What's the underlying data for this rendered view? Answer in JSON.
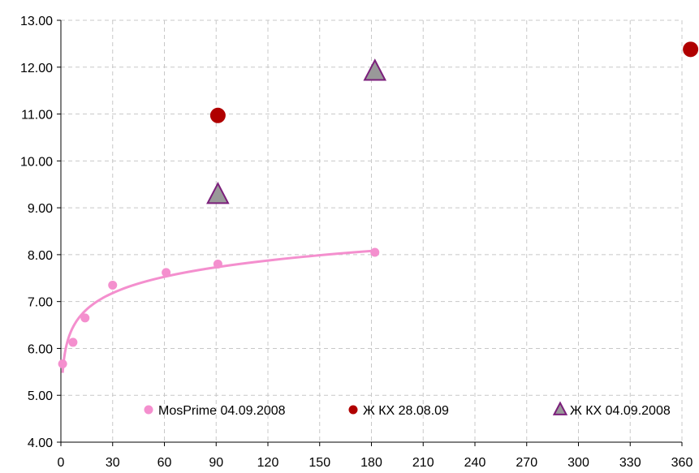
{
  "chart_data": {
    "type": "scatter",
    "title": "",
    "xlabel": "",
    "ylabel": "",
    "xlim": [
      0,
      360
    ],
    "ylim": [
      4,
      13
    ],
    "x_ticks": [
      "0",
      "30",
      "60",
      "90",
      "120",
      "150",
      "180",
      "210",
      "240",
      "270",
      "300",
      "330",
      "360"
    ],
    "y_ticks": [
      "4.00",
      "5.00",
      "6.00",
      "7.00",
      "8.00",
      "9.00",
      "10.00",
      "11.00",
      "12.00",
      "13.00"
    ],
    "grid": true,
    "legend_position": "bottom-inside",
    "series": [
      {
        "name": "MosPrime 04.09.2008",
        "marker": "circle",
        "color": "#f48fce",
        "points": [
          [
            1,
            5.67
          ],
          [
            7,
            6.13
          ],
          [
            14,
            6.65
          ],
          [
            30,
            7.35
          ],
          [
            61,
            7.62
          ],
          [
            91,
            7.8
          ],
          [
            182,
            8.05
          ]
        ],
        "trendline": "logarithmic"
      },
      {
        "name": "Ж КХ 28.08.09",
        "marker": "circle",
        "color": "#b00000",
        "points": [
          [
            91,
            10.97
          ],
          [
            365,
            12.38
          ]
        ]
      },
      {
        "name": "Ж КХ 04.09.2008",
        "marker": "triangle",
        "color": "#999999",
        "stroke": "#7b1f7b",
        "points": [
          [
            91,
            9.27
          ],
          [
            182,
            11.9
          ]
        ]
      }
    ]
  }
}
